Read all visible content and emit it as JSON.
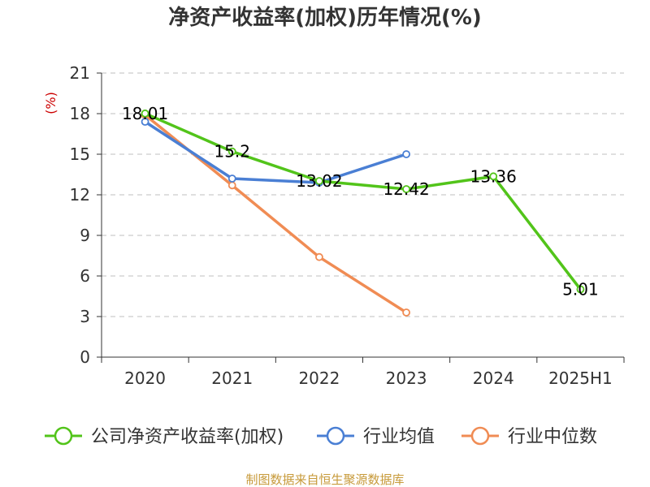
{
  "chart_data": {
    "type": "line",
    "title": "净资产收益率(加权)历年情况(%)",
    "ylabel": "(%)",
    "categories": [
      "2020",
      "2021",
      "2022",
      "2023",
      "2024",
      "2025H1"
    ],
    "y_ticks": [
      "0",
      "3",
      "6",
      "9",
      "12",
      "15",
      "18",
      "21"
    ],
    "ylim": [
      0,
      21
    ],
    "grid": "horizontal dashed",
    "legend_position": "bottom",
    "series": [
      {
        "name": "公司净资产收益率(加权)",
        "color": "#52c41a",
        "values": [
          18.01,
          15.2,
          13.02,
          12.42,
          13.36,
          5.01
        ],
        "labels": [
          "18.01",
          "15.2",
          "13.02",
          "12.42",
          "13.36",
          "5.01"
        ]
      },
      {
        "name": "行业均值",
        "color": "#4a7fd4",
        "values": [
          17.4,
          13.2,
          12.9,
          15.0,
          null,
          null
        ]
      },
      {
        "name": "行业中位数",
        "color": "#f08c54",
        "values": [
          17.9,
          12.7,
          7.4,
          3.3,
          null,
          null
        ]
      }
    ]
  },
  "source": "制图数据来自恒生聚源数据库"
}
